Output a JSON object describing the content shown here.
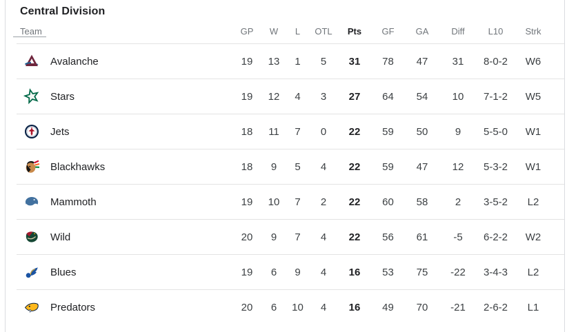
{
  "title": "Central Division",
  "table": {
    "columns": [
      {
        "key": "team",
        "label": "Team"
      },
      {
        "key": "gp",
        "label": "GP"
      },
      {
        "key": "w",
        "label": "W"
      },
      {
        "key": "l",
        "label": "L"
      },
      {
        "key": "otl",
        "label": "OTL"
      },
      {
        "key": "pts",
        "label": "Pts",
        "emphasized": true
      },
      {
        "key": "gf",
        "label": "GF"
      },
      {
        "key": "ga",
        "label": "GA"
      },
      {
        "key": "diff",
        "label": "Diff"
      },
      {
        "key": "l10",
        "label": "L10"
      },
      {
        "key": "strk",
        "label": "Strk"
      }
    ],
    "rows": [
      {
        "team": "Avalanche",
        "logo": "avalanche-logo",
        "logo_colors": [
          "#6F263D",
          "#236192"
        ],
        "gp": "19",
        "w": "13",
        "l": "1",
        "otl": "5",
        "pts": "31",
        "gf": "78",
        "ga": "47",
        "diff": "31",
        "l10": "8-0-2",
        "strk": "W6"
      },
      {
        "team": "Stars",
        "logo": "stars-logo",
        "logo_colors": [
          "#006847"
        ],
        "gp": "19",
        "w": "12",
        "l": "4",
        "otl": "3",
        "pts": "27",
        "gf": "64",
        "ga": "54",
        "diff": "10",
        "l10": "7-1-2",
        "strk": "W5"
      },
      {
        "team": "Jets",
        "logo": "jets-logo",
        "logo_colors": [
          "#041E42",
          "#AC162C"
        ],
        "gp": "18",
        "w": "11",
        "l": "7",
        "otl": "0",
        "pts": "22",
        "gf": "59",
        "ga": "50",
        "diff": "9",
        "l10": "5-5-0",
        "strk": "W1"
      },
      {
        "team": "Blackhawks",
        "logo": "blackhawks-logo",
        "logo_colors": [
          "#CF0A2C",
          "#FF671F",
          "#00843D"
        ],
        "gp": "18",
        "w": "9",
        "l": "5",
        "otl": "4",
        "pts": "22",
        "gf": "59",
        "ga": "47",
        "diff": "12",
        "l10": "5-3-2",
        "strk": "W1"
      },
      {
        "team": "Mammoth",
        "logo": "mammoth-logo",
        "logo_colors": [
          "#42719F",
          "#041E42"
        ],
        "gp": "19",
        "w": "10",
        "l": "7",
        "otl": "2",
        "pts": "22",
        "gf": "60",
        "ga": "58",
        "diff": "2",
        "l10": "3-5-2",
        "strk": "L2"
      },
      {
        "team": "Wild",
        "logo": "wild-logo",
        "logo_colors": [
          "#154734",
          "#A6192E",
          "#EAAA00"
        ],
        "gp": "20",
        "w": "9",
        "l": "7",
        "otl": "4",
        "pts": "22",
        "gf": "56",
        "ga": "61",
        "diff": "-5",
        "l10": "6-2-2",
        "strk": "W2"
      },
      {
        "team": "Blues",
        "logo": "blues-logo",
        "logo_colors": [
          "#1B54A3",
          "#FCB514"
        ],
        "gp": "19",
        "w": "6",
        "l": "9",
        "otl": "4",
        "pts": "16",
        "gf": "53",
        "ga": "75",
        "diff": "-22",
        "l10": "3-4-3",
        "strk": "L2"
      },
      {
        "team": "Predators",
        "logo": "predators-logo",
        "logo_colors": [
          "#FFB81C",
          "#041E42"
        ],
        "gp": "20",
        "w": "6",
        "l": "10",
        "otl": "4",
        "pts": "16",
        "gf": "49",
        "ga": "70",
        "diff": "-21",
        "l10": "2-6-2",
        "strk": "L1"
      }
    ]
  },
  "colors": {
    "title_text": "#202124",
    "header_text": "#70757a",
    "body_text": "#3c4043",
    "team_text": "#202124",
    "divider": "#e3e3e3",
    "team_header_underline": "#9aa0a6",
    "card_border": "#dadce0"
  }
}
